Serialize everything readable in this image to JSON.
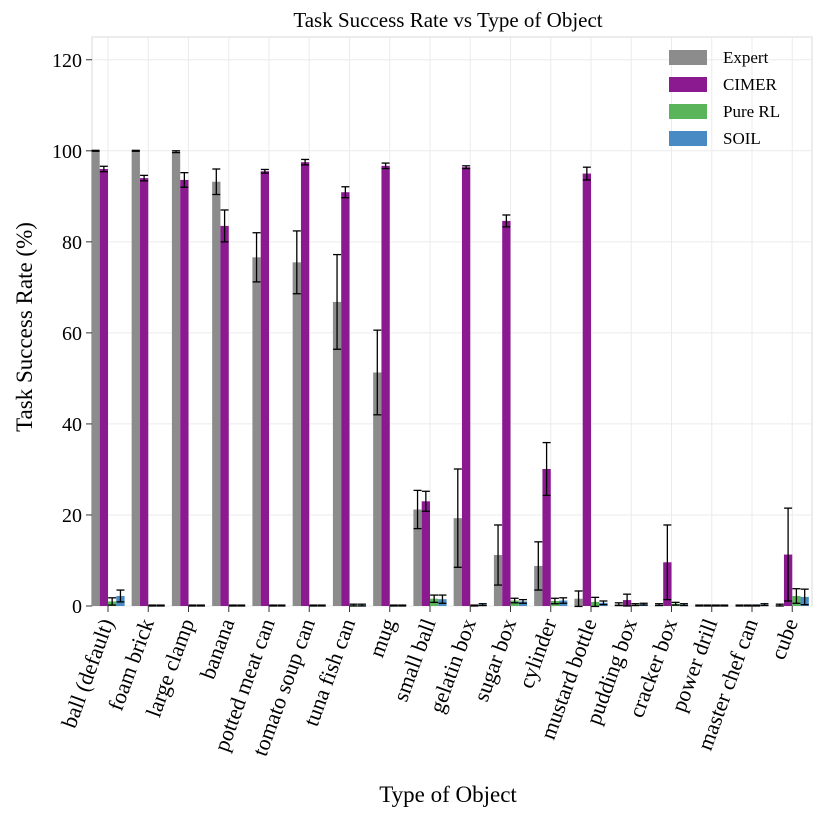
{
  "chart_data": {
    "type": "bar",
    "title": "Task Success Rate vs Type of Object",
    "xlabel": "Type of Object",
    "ylabel": "Task Success Rate (%)",
    "ylim": [
      0,
      125
    ],
    "yticks": [
      0,
      20,
      40,
      60,
      80,
      100,
      120
    ],
    "grid": true,
    "legend_position": "top-right",
    "categories": [
      "ball (default)",
      "foam brick",
      "large clamp",
      "banana",
      "potted meat can",
      "tomato soup can",
      "tuna fish can",
      "mug",
      "small ball",
      "gelatin box",
      "sugar box",
      "cylinder",
      "mustard bottle",
      "pudding box",
      "cracker box",
      "power drill",
      "master chef can",
      "cube"
    ],
    "series": [
      {
        "name": "Expert",
        "color": "#8c8c8c",
        "values": [
          100,
          100,
          99.8,
          93.2,
          76.6,
          75.5,
          66.8,
          51.3,
          21.2,
          19.3,
          11.2,
          8.8,
          1.6,
          0.4,
          0.3,
          0.1,
          0.1,
          0.2
        ],
        "errors": [
          0.1,
          0.1,
          0.2,
          2.8,
          5.4,
          6.9,
          10.4,
          9.3,
          4.2,
          10.8,
          6.6,
          5.3,
          1.7,
          0.3,
          0.2,
          0.1,
          0.1,
          0.2
        ]
      },
      {
        "name": "CIMER",
        "color": "#8b1a91",
        "values": [
          96.0,
          94.0,
          93.6,
          83.5,
          95.5,
          97.5,
          90.9,
          96.7,
          23.0,
          96.4,
          84.6,
          30.1,
          95.0,
          1.3,
          9.6,
          0.1,
          0.1,
          11.3
        ],
        "errors": [
          0.6,
          0.6,
          1.6,
          3.5,
          0.4,
          0.6,
          1.2,
          0.6,
          2.2,
          0.3,
          1.3,
          5.8,
          1.4,
          1.3,
          8.2,
          0.1,
          0.1,
          10.2
        ]
      },
      {
        "name": "Pure RL",
        "color": "#5ab55a",
        "values": [
          1.0,
          0.1,
          0.1,
          0.1,
          0.1,
          0.1,
          0.2,
          0.1,
          1.6,
          0.1,
          1.2,
          1.1,
          0.9,
          0.3,
          0.5,
          0.1,
          0.1,
          2.2
        ],
        "errors": [
          0.8,
          0.1,
          0.1,
          0.1,
          0.1,
          0.1,
          0.2,
          0.1,
          0.8,
          0.1,
          0.5,
          0.6,
          1.0,
          0.2,
          0.3,
          0.1,
          0.1,
          1.6
        ]
      },
      {
        "name": "SOIL",
        "color": "#4a8ac4",
        "values": [
          2.2,
          0.1,
          0.1,
          0.1,
          0.1,
          0.1,
          0.2,
          0.1,
          1.5,
          0.3,
          1.0,
          1.2,
          0.7,
          0.4,
          0.3,
          0.1,
          0.3,
          2.0
        ],
        "errors": [
          1.3,
          0.1,
          0.1,
          0.1,
          0.1,
          0.1,
          0.2,
          0.1,
          0.9,
          0.2,
          0.4,
          0.6,
          0.4,
          0.2,
          0.2,
          0.1,
          0.2,
          1.7
        ]
      }
    ]
  }
}
